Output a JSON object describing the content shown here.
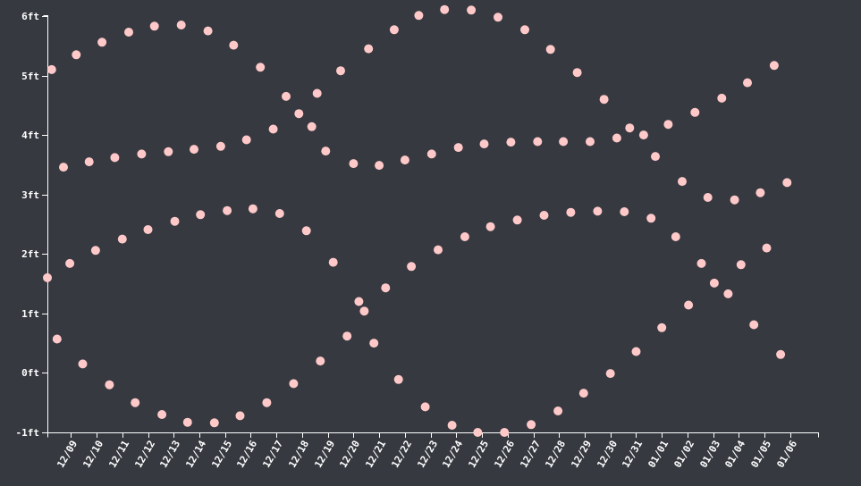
{
  "colors": {
    "background": "#363940",
    "point": "#ffc9c9",
    "axis": "#ffffff"
  },
  "chart_data": {
    "type": "scatter",
    "grid": false,
    "legend": "none",
    "xlabel": "",
    "ylabel": "",
    "ylim": [
      -1,
      6
    ],
    "y_ticks": [
      "-1ft",
      "0ft",
      "1ft",
      "2ft",
      "3ft",
      "4ft",
      "5ft",
      "6ft"
    ],
    "y_tick_values": [
      -1,
      0,
      1,
      2,
      3,
      4,
      5,
      6
    ],
    "x_ticks": [
      "12/09",
      "12/10",
      "12/11",
      "12/12",
      "12/13",
      "12/14",
      "12/15",
      "12/16",
      "12/17",
      "12/18",
      "12/19",
      "12/20",
      "12/21",
      "12/22",
      "12/23",
      "12/24",
      "12/25",
      "12/26",
      "12/27",
      "12/28",
      "12/29",
      "12/30",
      "12/31",
      "01/01",
      "01/02",
      "01/03",
      "01/04",
      "01/05",
      "01/06"
    ],
    "xlim": [
      "12/08 02:00",
      "01/07 02:00"
    ],
    "points": [
      {
        "t": "12/08 02:00",
        "y": 1.6
      },
      {
        "t": "12/08 06:00",
        "y": 5.1
      },
      {
        "t": "12/08 11:00",
        "y": 0.57
      },
      {
        "t": "12/08 17:00",
        "y": 3.46
      },
      {
        "t": "12/08 23:00",
        "y": 1.84
      },
      {
        "t": "12/09 05:00",
        "y": 5.35
      },
      {
        "t": "12/09 11:00",
        "y": 0.15
      },
      {
        "t": "12/09 17:00",
        "y": 3.55
      },
      {
        "t": "12/09 23:00",
        "y": 2.06
      },
      {
        "t": "12/10 05:00",
        "y": 5.56
      },
      {
        "t": "12/10 12:00",
        "y": -0.2
      },
      {
        "t": "12/10 17:00",
        "y": 3.62
      },
      {
        "t": "12/11 00:00",
        "y": 2.25
      },
      {
        "t": "12/11 06:00",
        "y": 5.73
      },
      {
        "t": "12/11 12:00",
        "y": -0.5
      },
      {
        "t": "12/11 18:00",
        "y": 3.68
      },
      {
        "t": "12/12 00:00",
        "y": 2.41
      },
      {
        "t": "12/12 06:00",
        "y": 5.83
      },
      {
        "t": "12/12 13:00",
        "y": -0.7
      },
      {
        "t": "12/12 19:00",
        "y": 3.72
      },
      {
        "t": "12/13 01:00",
        "y": 2.55
      },
      {
        "t": "12/13 07:00",
        "y": 5.85
      },
      {
        "t": "12/13 13:00",
        "y": -0.83
      },
      {
        "t": "12/13 19:00",
        "y": 3.76
      },
      {
        "t": "12/14 01:00",
        "y": 2.66
      },
      {
        "t": "12/14 08:00",
        "y": 5.75
      },
      {
        "t": "12/14 14:00",
        "y": -0.84
      },
      {
        "t": "12/14 20:00",
        "y": 3.81
      },
      {
        "t": "12/15 02:00",
        "y": 2.73
      },
      {
        "t": "12/15 08:00",
        "y": 5.51
      },
      {
        "t": "12/15 14:00",
        "y": -0.72
      },
      {
        "t": "12/15 20:00",
        "y": 3.92
      },
      {
        "t": "12/16 02:00",
        "y": 2.76
      },
      {
        "t": "12/16 09:00",
        "y": 5.14
      },
      {
        "t": "12/16 15:00",
        "y": -0.5
      },
      {
        "t": "12/16 21:00",
        "y": 4.1
      },
      {
        "t": "12/17 03:00",
        "y": 2.68
      },
      {
        "t": "12/17 09:00",
        "y": 4.65
      },
      {
        "t": "12/17 16:00",
        "y": -0.18
      },
      {
        "t": "12/17 21:00",
        "y": 4.36
      },
      {
        "t": "12/18 04:00",
        "y": 2.39
      },
      {
        "t": "12/18 09:00",
        "y": 4.14
      },
      {
        "t": "12/18 14:00",
        "y": 4.7
      },
      {
        "t": "12/18 17:00",
        "y": 0.2
      },
      {
        "t": "12/18 22:00",
        "y": 3.73
      },
      {
        "t": "12/19 05:00",
        "y": 1.86
      },
      {
        "t": "12/19 12:00",
        "y": 5.08
      },
      {
        "t": "12/19 18:00",
        "y": 0.62
      },
      {
        "t": "12/20 00:00",
        "y": 3.52
      },
      {
        "t": "12/20 05:00",
        "y": 1.2
      },
      {
        "t": "12/20 10:00",
        "y": 1.04
      },
      {
        "t": "12/20 14:00",
        "y": 5.45
      },
      {
        "t": "12/20 19:00",
        "y": 0.5
      },
      {
        "t": "12/21 00:00",
        "y": 3.49
      },
      {
        "t": "12/21 06:00",
        "y": 1.43
      },
      {
        "t": "12/21 14:00",
        "y": 5.77
      },
      {
        "t": "12/21 18:00",
        "y": -0.11
      },
      {
        "t": "12/22 00:00",
        "y": 3.58
      },
      {
        "t": "12/22 06:00",
        "y": 1.79
      },
      {
        "t": "12/22 13:00",
        "y": 6.01
      },
      {
        "t": "12/22 19:00",
        "y": -0.57
      },
      {
        "t": "12/23 01:00",
        "y": 3.68
      },
      {
        "t": "12/23 07:00",
        "y": 2.07
      },
      {
        "t": "12/23 13:00",
        "y": 6.11
      },
      {
        "t": "12/23 20:00",
        "y": -0.88
      },
      {
        "t": "12/24 02:00",
        "y": 3.79
      },
      {
        "t": "12/24 08:00",
        "y": 2.29
      },
      {
        "t": "12/24 14:00",
        "y": 6.1
      },
      {
        "t": "12/24 20:00",
        "y": -1.0
      },
      {
        "t": "12/25 02:00",
        "y": 3.85
      },
      {
        "t": "12/25 08:00",
        "y": 2.46
      },
      {
        "t": "12/25 15:00",
        "y": 5.98
      },
      {
        "t": "12/25 21:00",
        "y": -1.0
      },
      {
        "t": "12/26 03:00",
        "y": 3.88
      },
      {
        "t": "12/26 09:00",
        "y": 2.57
      },
      {
        "t": "12/26 16:00",
        "y": 5.77
      },
      {
        "t": "12/26 22:00",
        "y": -0.87
      },
      {
        "t": "12/27 04:00",
        "y": 3.89
      },
      {
        "t": "12/27 10:00",
        "y": 2.65
      },
      {
        "t": "12/27 16:00",
        "y": 5.44
      },
      {
        "t": "12/27 23:00",
        "y": -0.64
      },
      {
        "t": "12/28 04:00",
        "y": 3.89
      },
      {
        "t": "12/28 11:00",
        "y": 2.7
      },
      {
        "t": "12/28 17:00",
        "y": 5.05
      },
      {
        "t": "12/28 23:00",
        "y": -0.34
      },
      {
        "t": "12/29 05:00",
        "y": 3.89
      },
      {
        "t": "12/29 12:00",
        "y": 2.72
      },
      {
        "t": "12/29 18:00",
        "y": 4.6
      },
      {
        "t": "12/30 00:00",
        "y": -0.01
      },
      {
        "t": "12/30 06:00",
        "y": 3.95
      },
      {
        "t": "12/30 13:00",
        "y": 2.71
      },
      {
        "t": "12/30 18:00",
        "y": 4.12
      },
      {
        "t": "12/31 00:00",
        "y": 0.36
      },
      {
        "t": "12/31 07:00",
        "y": 4.0
      },
      {
        "t": "12/31 14:00",
        "y": 2.6
      },
      {
        "t": "12/31 18:00",
        "y": 3.64
      },
      {
        "t": "01/01 00:00",
        "y": 0.76
      },
      {
        "t": "01/01 06:00",
        "y": 4.18
      },
      {
        "t": "01/01 13:00",
        "y": 2.29
      },
      {
        "t": "01/01 19:00",
        "y": 3.22
      },
      {
        "t": "01/02 01:00",
        "y": 1.14
      },
      {
        "t": "01/02 07:00",
        "y": 4.38
      },
      {
        "t": "01/02 13:00",
        "y": 1.84
      },
      {
        "t": "01/02 19:00",
        "y": 2.95
      },
      {
        "t": "01/03 01:00",
        "y": 1.51
      },
      {
        "t": "01/03 08:00",
        "y": 4.62
      },
      {
        "t": "01/03 14:00",
        "y": 1.33
      },
      {
        "t": "01/03 20:00",
        "y": 2.91
      },
      {
        "t": "01/04 02:00",
        "y": 1.82
      },
      {
        "t": "01/04 08:00",
        "y": 4.88
      },
      {
        "t": "01/04 14:00",
        "y": 0.81
      },
      {
        "t": "01/04 20:00",
        "y": 3.03
      },
      {
        "t": "01/05 02:00",
        "y": 2.1
      },
      {
        "t": "01/05 09:00",
        "y": 5.17
      },
      {
        "t": "01/05 15:00",
        "y": 0.31
      },
      {
        "t": "01/05 21:00",
        "y": 3.2
      }
    ]
  }
}
